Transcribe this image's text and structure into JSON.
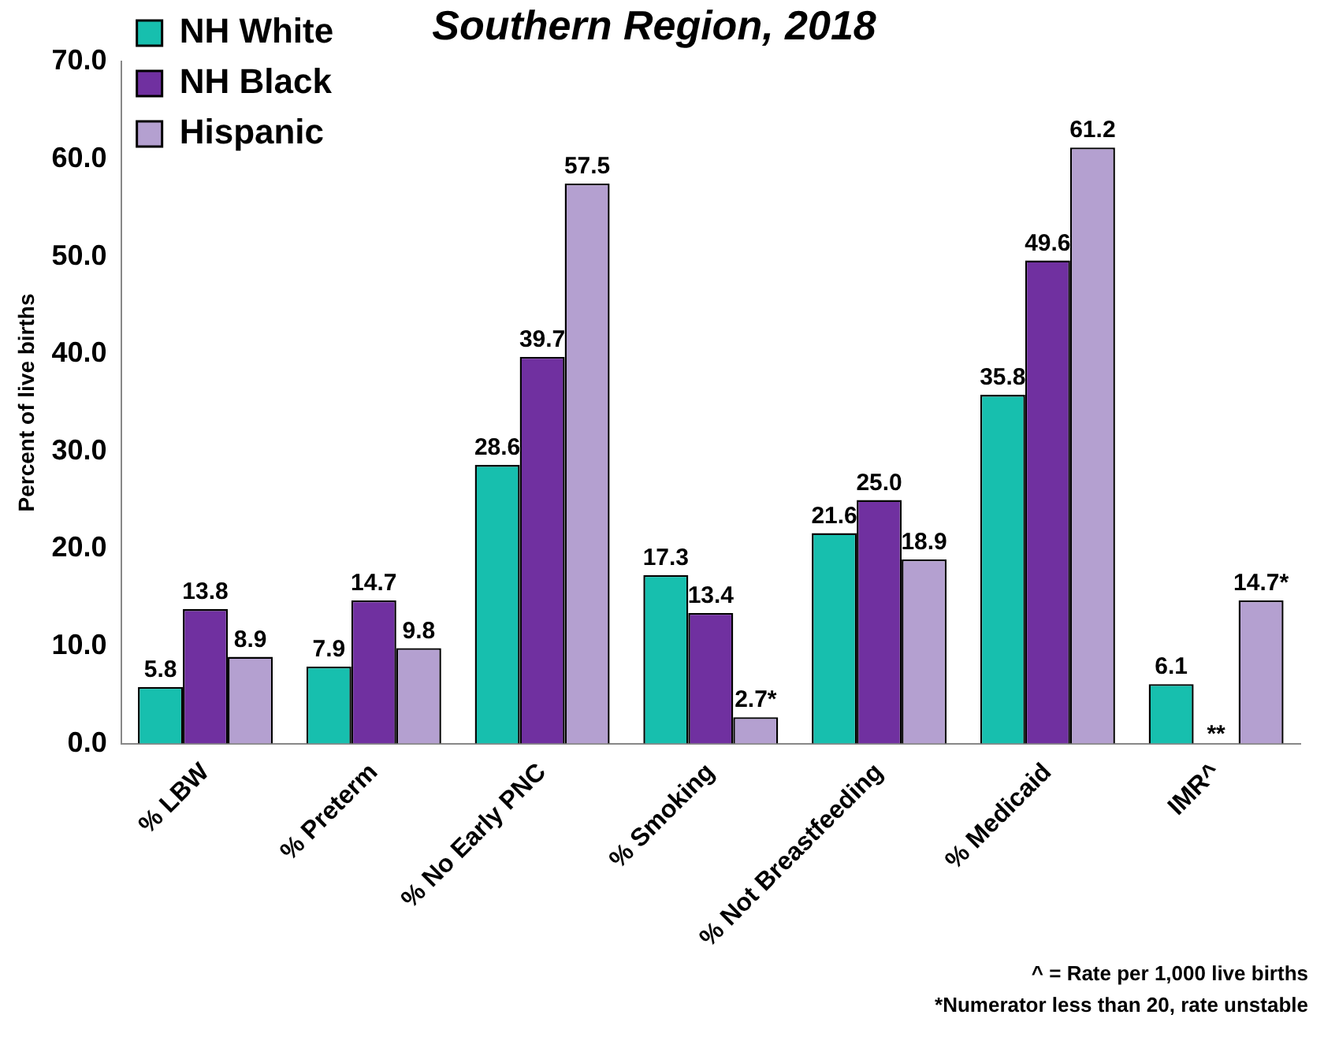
{
  "chart_data": {
    "type": "bar",
    "title": "Southern Region, 2018",
    "ylabel": "Percent of live births",
    "categories": [
      "% LBW",
      "% Preterm",
      "% No Early PNC",
      "% Smoking",
      "% Not Breastfeeding",
      "% Medicaid",
      "IMR^"
    ],
    "series": [
      {
        "name": "NH White",
        "color": "#17bfae",
        "values": [
          5.8,
          7.9,
          28.6,
          17.3,
          21.6,
          35.8,
          6.1
        ],
        "value_labels": [
          "5.8",
          "7.9",
          "28.6",
          "17.3",
          "21.6",
          "35.8",
          "6.1"
        ]
      },
      {
        "name": "NH Black",
        "color": "#7030a0",
        "values": [
          13.8,
          14.7,
          39.7,
          13.4,
          25.0,
          49.6,
          null
        ],
        "value_labels": [
          "13.8",
          "14.7",
          "39.7",
          "13.4",
          "25.0",
          "49.6",
          "**"
        ]
      },
      {
        "name": "Hispanic",
        "color": "#b4a0d0",
        "values": [
          8.9,
          9.8,
          57.5,
          2.7,
          18.9,
          61.2,
          14.7
        ],
        "value_labels": [
          "8.9",
          "9.8",
          "57.5",
          "2.7*",
          "18.9",
          "61.2",
          "14.7*"
        ]
      }
    ],
    "ylim": [
      0,
      70
    ],
    "yticks": [
      {
        "value": 0,
        "label": "0.0"
      },
      {
        "value": 10,
        "label": "10.0"
      },
      {
        "value": 20,
        "label": "20.0"
      },
      {
        "value": 30,
        "label": "30.0"
      },
      {
        "value": 40,
        "label": "40.0"
      },
      {
        "value": 50,
        "label": "50.0"
      },
      {
        "value": 60,
        "label": "60.0"
      },
      {
        "value": 70,
        "label": "70.0"
      }
    ],
    "grid": false,
    "legend": "top left",
    "annotations": [
      "^ = Rate per 1,000 live births",
      "*Numerator less than 20, rate unstable"
    ]
  }
}
